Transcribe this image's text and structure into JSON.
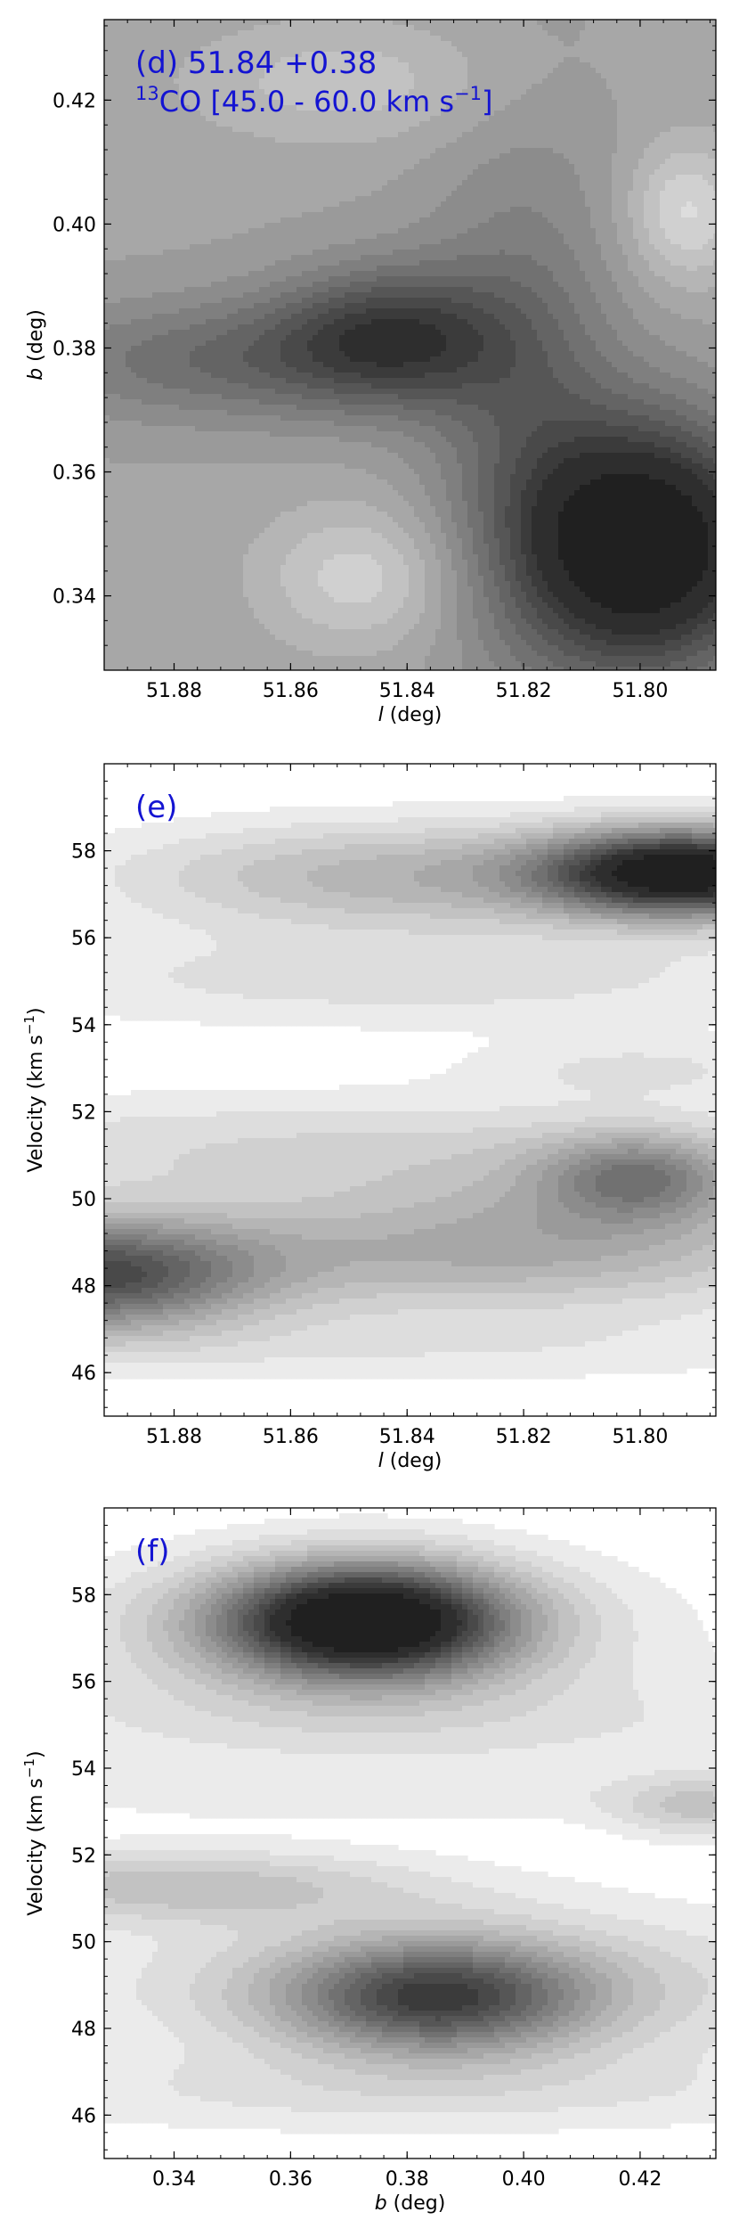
{
  "chart_data": [
    {
      "type": "contour",
      "panel_label": "(d) 51.84 +0.38",
      "title_line2_prefix": "CO [45.0 - 60.0 km s",
      "title_line2_isotope": "13",
      "title_line2_exponent": "−1",
      "title_line2_close": "]",
      "label_color": "#1414d2",
      "xlabel": "l (deg)",
      "xlabel_italic": "l",
      "xlabel_rest": " (deg)",
      "ylabel": "b (deg)",
      "ylabel_italic": "b",
      "ylabel_rest": " (deg)",
      "xlim": [
        51.892,
        51.787
      ],
      "ylim": [
        0.328,
        0.433
      ],
      "xticks": [
        51.88,
        51.86,
        51.84,
        51.82,
        51.8
      ],
      "xtick_labels": [
        "51.88",
        "51.86",
        "51.84",
        "51.82",
        "51.80"
      ],
      "yticks": [
        0.34,
        0.36,
        0.38,
        0.4,
        0.42
      ],
      "ytick_labels": [
        "0.34",
        "0.36",
        "0.38",
        "0.40",
        "0.42"
      ],
      "background_level": 0.34,
      "features": [
        {
          "x": 51.799,
          "y": 0.348,
          "sx": 0.015,
          "sy": 0.014,
          "amp": 0.66
        },
        {
          "x": 51.843,
          "y": 0.382,
          "sx": 0.014,
          "sy": 0.008,
          "amp": 0.34
        },
        {
          "x": 51.872,
          "y": 0.378,
          "sx": 0.024,
          "sy": 0.007,
          "amp": 0.2
        },
        {
          "x": 51.82,
          "y": 0.372,
          "sx": 0.012,
          "sy": 0.03,
          "amp": 0.18
        },
        {
          "x": 51.848,
          "y": 0.343,
          "sx": 0.012,
          "sy": 0.008,
          "amp": -0.17
        },
        {
          "x": 51.792,
          "y": 0.402,
          "sx": 0.007,
          "sy": 0.008,
          "amp": -0.2
        },
        {
          "x": 51.85,
          "y": 0.423,
          "sx": 0.02,
          "sy": 0.007,
          "amp": -0.12
        }
      ]
    },
    {
      "type": "contour",
      "panel_label": "(e)",
      "label_color": "#1414d2",
      "xlabel": "l (deg)",
      "xlabel_italic": "l",
      "xlabel_rest": " (deg)",
      "ylabel": "Velocity (km s−1)",
      "ylabel_prefix": "Velocity (km s",
      "ylabel_exponent": "−1",
      "ylabel_close": ")",
      "xlim": [
        51.892,
        51.787
      ],
      "ylim": [
        45,
        60
      ],
      "xticks": [
        51.88,
        51.86,
        51.84,
        51.82,
        51.8
      ],
      "xtick_labels": [
        "51.88",
        "51.86",
        "51.84",
        "51.82",
        "51.80"
      ],
      "yticks": [
        46,
        48,
        50,
        52,
        54,
        56,
        58
      ],
      "ytick_labels": [
        "46",
        "48",
        "50",
        "52",
        "54",
        "56",
        "58"
      ],
      "background_level": 0.0,
      "features": [
        {
          "x": 51.792,
          "y": 57.5,
          "sx": 0.017,
          "sy": 0.7,
          "amp": 0.9
        },
        {
          "x": 51.84,
          "y": 57.4,
          "sx": 0.035,
          "sy": 0.9,
          "amp": 0.28
        },
        {
          "x": 51.895,
          "y": 48.2,
          "sx": 0.02,
          "sy": 0.9,
          "amp": 0.58
        },
        {
          "x": 51.84,
          "y": 48.7,
          "sx": 0.05,
          "sy": 1.0,
          "amp": 0.22
        },
        {
          "x": 51.8,
          "y": 50.5,
          "sx": 0.012,
          "sy": 0.7,
          "amp": 0.35
        },
        {
          "x": 51.81,
          "y": 49.5,
          "sx": 0.03,
          "sy": 1.2,
          "amp": 0.15
        },
        {
          "x": 51.86,
          "y": 51.2,
          "sx": 0.06,
          "sy": 0.9,
          "amp": 0.14
        },
        {
          "x": 51.8,
          "y": 53.0,
          "sx": 0.02,
          "sy": 0.5,
          "amp": 0.1
        },
        {
          "x": 51.84,
          "y": 55.0,
          "sx": 0.06,
          "sy": 0.8,
          "amp": 0.12
        },
        {
          "x": 51.84,
          "y": 46.5,
          "sx": 0.06,
          "sy": 0.6,
          "amp": 0.08
        }
      ]
    },
    {
      "type": "contour",
      "panel_label": "(f)",
      "label_color": "#1414d2",
      "xlabel": "b (deg)",
      "xlabel_italic": "b",
      "xlabel_rest": " (deg)",
      "ylabel": "Velocity (km s−1)",
      "ylabel_prefix": "Velocity (km s",
      "ylabel_exponent": "−1",
      "ylabel_close": ")",
      "xlim": [
        0.328,
        0.433
      ],
      "ylim": [
        45,
        60
      ],
      "xticks": [
        0.34,
        0.36,
        0.38,
        0.4,
        0.42
      ],
      "xtick_labels": [
        "0.34",
        "0.36",
        "0.38",
        "0.40",
        "0.42"
      ],
      "yticks": [
        46,
        48,
        50,
        52,
        54,
        56,
        58
      ],
      "ytick_labels": [
        "46",
        "48",
        "50",
        "52",
        "54",
        "56",
        "58"
      ],
      "background_level": 0.0,
      "features": [
        {
          "x": 0.373,
          "y": 57.4,
          "sx": 0.017,
          "sy": 0.9,
          "amp": 0.9
        },
        {
          "x": 0.37,
          "y": 57.2,
          "sx": 0.035,
          "sy": 1.3,
          "amp": 0.2
        },
        {
          "x": 0.385,
          "y": 48.7,
          "sx": 0.018,
          "sy": 0.9,
          "amp": 0.55
        },
        {
          "x": 0.39,
          "y": 49.0,
          "sx": 0.045,
          "sy": 1.3,
          "amp": 0.2
        },
        {
          "x": 0.34,
          "y": 51.3,
          "sx": 0.03,
          "sy": 0.6,
          "amp": 0.22
        },
        {
          "x": 0.43,
          "y": 53.1,
          "sx": 0.01,
          "sy": 0.5,
          "amp": 0.18
        },
        {
          "x": 0.38,
          "y": 55.0,
          "sx": 0.06,
          "sy": 0.9,
          "amp": 0.1
        },
        {
          "x": 0.38,
          "y": 46.5,
          "sx": 0.06,
          "sy": 0.7,
          "amp": 0.1
        },
        {
          "x": 0.38,
          "y": 53.3,
          "sx": 0.06,
          "sy": 0.5,
          "amp": 0.06
        }
      ]
    }
  ]
}
